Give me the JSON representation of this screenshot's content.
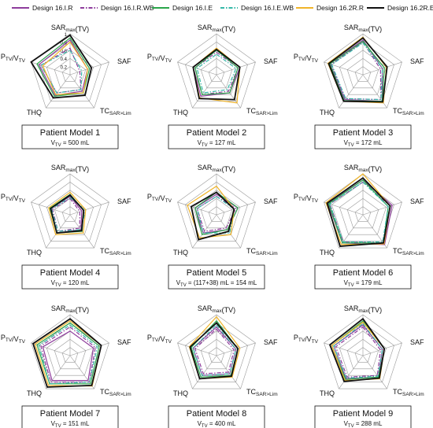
{
  "legend": [
    {
      "name": "Design 16.I.R",
      "color": "#8e3c9c",
      "dash": "solid"
    },
    {
      "name": "Design 16.I.R.WB",
      "color": "#8e3c9c",
      "dash": "dashdot"
    },
    {
      "name": "Design 16.I.E",
      "color": "#2aa54a",
      "dash": "solid"
    },
    {
      "name": "Design 16.I.E.WB",
      "color": "#35b8a8",
      "dash": "dashdot"
    },
    {
      "name": "Design 16.2R.R",
      "color": "#f0b429",
      "dash": "solid"
    },
    {
      "name": "Design 16.2R.E",
      "color": "#111111",
      "dash": "solid"
    }
  ],
  "axis_labels": [
    "SAR_max(TV)",
    "SAF",
    "TC_SAR>Lim",
    "THQ",
    "P_TV/V_TV"
  ],
  "radial_ticks": [
    "0.2",
    "0.4",
    "0.6",
    "0.8",
    "1"
  ],
  "chart_data": [
    {
      "type": "radar",
      "title": "Patient Model 1",
      "subtitle": "V_TV = 500 mL",
      "axes": [
        "SAR_max(TV)",
        "SAF",
        "TC_SAR>Lim",
        "THQ",
        "P_TV/V_TV"
      ],
      "rlim": [
        0,
        1
      ],
      "series": [
        {
          "name": "Design 16.I.R",
          "values": [
            0.85,
            0.45,
            0.5,
            0.62,
            0.8
          ]
        },
        {
          "name": "Design 16.I.R.WB",
          "values": [
            0.65,
            0.25,
            0.45,
            0.55,
            0.75
          ]
        },
        {
          "name": "Design 16.I.E",
          "values": [
            0.9,
            0.5,
            0.55,
            0.65,
            0.85
          ]
        },
        {
          "name": "Design 16.I.E.WB",
          "values": [
            0.6,
            0.3,
            0.45,
            0.55,
            0.75
          ]
        },
        {
          "name": "Design 16.2R.R",
          "values": [
            0.8,
            0.45,
            0.55,
            0.6,
            0.7
          ]
        },
        {
          "name": "Design 16.2R.E",
          "values": [
            0.97,
            0.55,
            0.62,
            0.7,
            1.0
          ]
        }
      ]
    },
    {
      "type": "radar",
      "title": "Patient Model 2",
      "subtitle": "V_TV = 127 mL",
      "axes": [
        "SAR_max(TV)",
        "SAF",
        "TC_SAR>Lim",
        "THQ",
        "P_TV/V_TV"
      ],
      "rlim": [
        0,
        1
      ],
      "series": [
        {
          "name": "Design 16.I.R",
          "values": [
            0.6,
            0.6,
            0.55,
            0.65,
            0.6
          ]
        },
        {
          "name": "Design 16.I.R.WB",
          "values": [
            0.55,
            0.55,
            0.5,
            0.6,
            0.55
          ]
        },
        {
          "name": "Design 16.I.E",
          "values": [
            0.6,
            0.55,
            0.55,
            0.6,
            0.55
          ]
        },
        {
          "name": "Design 16.I.E.WB",
          "values": [
            0.5,
            0.5,
            0.45,
            0.55,
            0.5
          ]
        },
        {
          "name": "Design 16.2R.R",
          "values": [
            0.65,
            0.6,
            0.85,
            0.7,
            0.6
          ]
        },
        {
          "name": "Design 16.2R.E",
          "values": [
            0.62,
            0.6,
            0.75,
            0.72,
            0.6
          ]
        }
      ]
    },
    {
      "type": "radar",
      "title": "Patient Model 3",
      "subtitle": "V_TV = 172 mL",
      "axes": [
        "SAR_max(TV)",
        "SAF",
        "TC_SAR>Lim",
        "THQ",
        "P_TV/V_TV"
      ],
      "rlim": [
        0,
        1
      ],
      "series": [
        {
          "name": "Design 16.I.R",
          "values": [
            0.85,
            0.5,
            0.8,
            0.75,
            0.85
          ]
        },
        {
          "name": "Design 16.I.R.WB",
          "values": [
            0.8,
            0.45,
            0.75,
            0.72,
            0.82
          ]
        },
        {
          "name": "Design 16.I.E",
          "values": [
            0.82,
            0.55,
            0.8,
            0.78,
            0.85
          ]
        },
        {
          "name": "Design 16.I.E.WB",
          "values": [
            0.78,
            0.5,
            0.75,
            0.72,
            0.8
          ]
        },
        {
          "name": "Design 16.2R.R",
          "values": [
            0.92,
            0.6,
            0.85,
            0.8,
            0.9
          ]
        },
        {
          "name": "Design 16.2R.E",
          "values": [
            0.9,
            0.62,
            0.82,
            0.8,
            0.88
          ]
        }
      ]
    },
    {
      "type": "radar",
      "title": "Patient Model 4",
      "subtitle": "V_TV = 120 mL",
      "axes": [
        "SAR_max(TV)",
        "SAF",
        "TC_SAR>Lim",
        "THQ",
        "P_TV/V_TV"
      ],
      "rlim": [
        0,
        1
      ],
      "series": [
        {
          "name": "Design 16.I.R",
          "values": [
            0.45,
            0.3,
            0.45,
            0.55,
            0.5
          ]
        },
        {
          "name": "Design 16.I.R.WB",
          "values": [
            0.4,
            0.25,
            0.4,
            0.5,
            0.45
          ]
        },
        {
          "name": "Design 16.I.E",
          "values": [
            0.5,
            0.35,
            0.5,
            0.55,
            0.52
          ]
        },
        {
          "name": "Design 16.I.E.WB",
          "values": [
            0.42,
            0.4,
            0.45,
            0.5,
            0.48
          ]
        },
        {
          "name": "Design 16.2R.R",
          "values": [
            0.55,
            0.4,
            0.55,
            0.6,
            0.55
          ]
        },
        {
          "name": "Design 16.2R.E",
          "values": [
            0.48,
            0.35,
            0.48,
            0.55,
            0.5
          ]
        }
      ]
    },
    {
      "type": "radar",
      "title": "Patient Model 5",
      "subtitle": "V_TV = (117+38) mL = 154 mL",
      "axes": [
        "SAR_max(TV)",
        "SAF",
        "TC_SAR>Lim",
        "THQ",
        "P_TV/V_TV"
      ],
      "rlim": [
        0,
        1
      ],
      "series": [
        {
          "name": "Design 16.I.R",
          "values": [
            0.5,
            0.55,
            0.45,
            0.55,
            0.55
          ]
        },
        {
          "name": "Design 16.I.R.WB",
          "values": [
            0.45,
            0.5,
            0.4,
            0.5,
            0.5
          ]
        },
        {
          "name": "Design 16.I.E",
          "values": [
            0.55,
            0.55,
            0.45,
            0.6,
            0.55
          ]
        },
        {
          "name": "Design 16.I.E.WB",
          "values": [
            0.45,
            0.45,
            0.55,
            0.55,
            0.5
          ]
        },
        {
          "name": "Design 16.2R.R",
          "values": [
            0.7,
            0.45,
            0.6,
            0.7,
            0.75
          ]
        },
        {
          "name": "Design 16.2R.E",
          "values": [
            0.55,
            0.45,
            0.5,
            0.75,
            0.65
          ]
        }
      ]
    },
    {
      "type": "radar",
      "title": "Patient Model 6",
      "subtitle": "V_TV = 179 mL",
      "axes": [
        "SAR_max(TV)",
        "SAF",
        "TC_SAR>Lim",
        "THQ",
        "P_TV/V_TV"
      ],
      "rlim": [
        0,
        1
      ],
      "series": [
        {
          "name": "Design 16.I.R",
          "values": [
            0.85,
            0.75,
            0.9,
            0.85,
            0.9
          ]
        },
        {
          "name": "Design 16.I.R.WB",
          "values": [
            0.8,
            0.7,
            0.85,
            0.82,
            0.85
          ]
        },
        {
          "name": "Design 16.I.E",
          "values": [
            0.85,
            0.65,
            0.85,
            0.85,
            0.88
          ]
        },
        {
          "name": "Design 16.I.E.WB",
          "values": [
            0.8,
            0.65,
            0.82,
            0.82,
            0.85
          ]
        },
        {
          "name": "Design 16.2R.R",
          "values": [
            1.0,
            0.7,
            0.88,
            0.9,
            0.95
          ]
        },
        {
          "name": "Design 16.2R.E",
          "values": [
            0.9,
            0.7,
            0.85,
            0.95,
            0.92
          ]
        }
      ]
    },
    {
      "type": "radar",
      "title": "Patient Model 7",
      "subtitle": "V_TV = 151 mL",
      "axes": [
        "SAR_max(TV)",
        "SAF",
        "TC_SAR>Lim",
        "THQ",
        "P_TV/V_TV"
      ],
      "rlim": [
        0,
        1
      ],
      "series": [
        {
          "name": "Design 16.I.R",
          "values": [
            0.6,
            0.6,
            0.75,
            0.75,
            0.7
          ]
        },
        {
          "name": "Design 16.I.R.WB",
          "values": [
            0.7,
            0.65,
            0.8,
            0.8,
            0.75
          ]
        },
        {
          "name": "Design 16.I.E",
          "values": [
            0.8,
            0.75,
            0.85,
            0.85,
            0.85
          ]
        },
        {
          "name": "Design 16.I.E.WB",
          "values": [
            0.75,
            0.7,
            0.8,
            0.85,
            0.8
          ]
        },
        {
          "name": "Design 16.2R.R",
          "values": [
            0.85,
            0.8,
            0.92,
            0.9,
            0.9
          ]
        },
        {
          "name": "Design 16.2R.E",
          "values": [
            0.9,
            0.8,
            0.9,
            0.95,
            0.95
          ]
        }
      ]
    },
    {
      "type": "radar",
      "title": "Patient Model 8",
      "subtitle": "V_TV = 400 mL",
      "axes": [
        "SAR_max(TV)",
        "SAF",
        "TC_SAR>Lim",
        "THQ",
        "P_TV/V_TV"
      ],
      "rlim": [
        0,
        1
      ],
      "series": [
        {
          "name": "Design 16.I.R",
          "values": [
            0.7,
            0.5,
            0.55,
            0.6,
            0.6
          ]
        },
        {
          "name": "Design 16.I.R.WB",
          "values": [
            0.65,
            0.45,
            0.5,
            0.55,
            0.55
          ]
        },
        {
          "name": "Design 16.I.E",
          "values": [
            0.85,
            0.55,
            0.6,
            0.65,
            0.65
          ]
        },
        {
          "name": "Design 16.I.E.WB",
          "values": [
            0.75,
            0.5,
            0.55,
            0.6,
            0.6
          ]
        },
        {
          "name": "Design 16.2R.R",
          "values": [
            0.95,
            0.6,
            0.65,
            0.7,
            0.7
          ]
        },
        {
          "name": "Design 16.2R.E",
          "values": [
            0.8,
            0.55,
            0.62,
            0.7,
            0.68
          ]
        }
      ]
    },
    {
      "type": "radar",
      "title": "Patient Model 9",
      "subtitle": "V_TV = 288 mL",
      "axes": [
        "SAR_max(TV)",
        "SAF",
        "TC_SAR>Lim",
        "THQ",
        "P_TV/V_TV"
      ],
      "rlim": [
        0,
        1
      ],
      "series": [
        {
          "name": "Design 16.I.R",
          "values": [
            0.75,
            0.5,
            0.65,
            0.7,
            0.75
          ]
        },
        {
          "name": "Design 16.I.R.WB",
          "values": [
            0.7,
            0.45,
            0.6,
            0.65,
            0.7
          ]
        },
        {
          "name": "Design 16.I.E",
          "values": [
            0.85,
            0.55,
            0.65,
            0.72,
            0.8
          ]
        },
        {
          "name": "Design 16.I.E.WB",
          "values": [
            0.78,
            0.5,
            0.62,
            0.68,
            0.75
          ]
        },
        {
          "name": "Design 16.2R.R",
          "values": [
            0.82,
            0.55,
            0.7,
            0.75,
            0.8
          ]
        },
        {
          "name": "Design 16.2R.E",
          "values": [
            0.9,
            0.55,
            0.68,
            0.78,
            0.85
          ]
        }
      ]
    }
  ]
}
